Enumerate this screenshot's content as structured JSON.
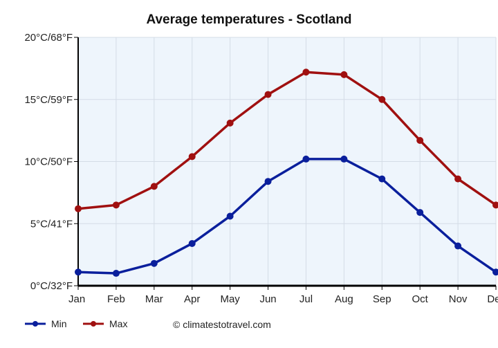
{
  "chart_data": {
    "type": "line",
    "title": "Average temperatures - Scotland",
    "categories": [
      "Jan",
      "Feb",
      "Mar",
      "Apr",
      "May",
      "Jun",
      "Jul",
      "Aug",
      "Sep",
      "Oct",
      "Nov",
      "Dec"
    ],
    "y_tick_labels": [
      "0°C/32°F",
      "5°C/41°F",
      "10°C/50°F",
      "15°C/59°F",
      "20°C/68°F"
    ],
    "y_ticks": [
      0,
      5,
      10,
      15,
      20
    ],
    "ylim": [
      0,
      20
    ],
    "grid": true,
    "legend_position": "bottom-left",
    "series": [
      {
        "name": "Min",
        "color": "#0a1f9c",
        "values": [
          1.1,
          1.0,
          1.8,
          3.4,
          5.6,
          8.4,
          10.2,
          10.2,
          8.6,
          5.9,
          3.2,
          1.1
        ]
      },
      {
        "name": "Max",
        "color": "#a01010",
        "values": [
          6.2,
          6.5,
          8.0,
          10.4,
          13.1,
          15.4,
          17.2,
          17.0,
          15.0,
          11.7,
          8.6,
          6.5
        ]
      }
    ],
    "attribution": "© climatestotravel.com"
  }
}
